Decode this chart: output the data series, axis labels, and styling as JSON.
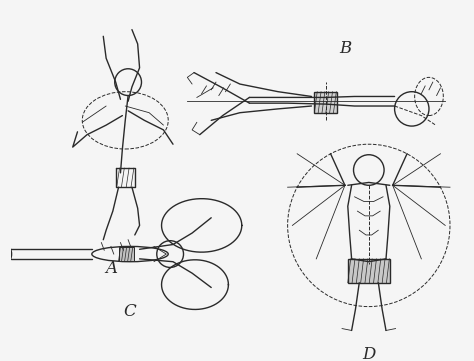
{
  "background_color": "#f5f5f5",
  "label_A": "A",
  "label_B": "B",
  "label_C": "C",
  "label_D": "D",
  "label_fontsize": 12,
  "figsize": [
    4.74,
    3.61
  ],
  "dpi": 100,
  "line_color": "#2a2a2a",
  "lw_main": 1.0,
  "lw_thin": 0.6,
  "lw_dash": 0.7
}
